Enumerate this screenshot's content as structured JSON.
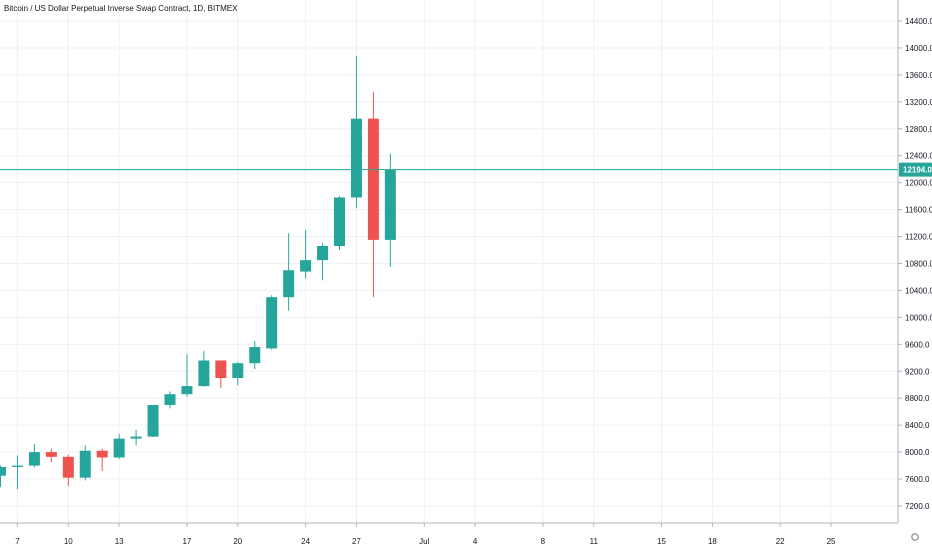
{
  "chart_data": {
    "type": "candlestick",
    "title": "Bitcoin / US Dollar Perpetual Inverse Swap Contract, 1D, BITMEX",
    "x_tick_labels": [
      "7",
      "10",
      "13",
      "17",
      "20",
      "24",
      "27",
      "Jul",
      "4",
      "8",
      "11",
      "15",
      "18",
      "22",
      "25"
    ],
    "y_tick_labels": [
      "14400.0",
      "14000.0",
      "13600.0",
      "13200.0",
      "12800.0",
      "12400.0",
      "12000.0",
      "11600.0",
      "11200.0",
      "10800.0",
      "10400.0",
      "10000.0",
      "9600.0",
      "9200.0",
      "8800.0",
      "8400.0",
      "8000.0",
      "7600.0",
      "7200.0"
    ],
    "ylim": [
      6950,
      14650
    ],
    "grid": true,
    "current_price": 12194.0,
    "current_price_label": "12194.0",
    "colors": {
      "up": "#26a69a",
      "down": "#ef5350",
      "price_line": "#26a69a",
      "grid": "#eef0f4",
      "axis_text": "#131722"
    },
    "candles": [
      {
        "date": "Jun 6",
        "open": 7650,
        "high": 7800,
        "low": 7480,
        "close": 7780
      },
      {
        "date": "Jun 7",
        "open": 7780,
        "high": 7950,
        "low": 7450,
        "close": 7800
      },
      {
        "date": "Jun 8",
        "open": 7800,
        "high": 8120,
        "low": 7770,
        "close": 8000
      },
      {
        "date": "Jun 9",
        "open": 8000,
        "high": 8050,
        "low": 7850,
        "close": 7930
      },
      {
        "date": "Jun 10",
        "open": 7930,
        "high": 7960,
        "low": 7500,
        "close": 7620
      },
      {
        "date": "Jun 11",
        "open": 7620,
        "high": 8100,
        "low": 7580,
        "close": 8020
      },
      {
        "date": "Jun 12",
        "open": 8020,
        "high": 8050,
        "low": 7720,
        "close": 7920
      },
      {
        "date": "Jun 13",
        "open": 7920,
        "high": 8270,
        "low": 7900,
        "close": 8200
      },
      {
        "date": "Jun 14",
        "open": 8200,
        "high": 8330,
        "low": 8100,
        "close": 8230
      },
      {
        "date": "Jun 15",
        "open": 8230,
        "high": 8700,
        "low": 8220,
        "close": 8700
      },
      {
        "date": "Jun 16",
        "open": 8700,
        "high": 8900,
        "low": 8650,
        "close": 8860
      },
      {
        "date": "Jun 17",
        "open": 8860,
        "high": 9450,
        "low": 8820,
        "close": 8980
      },
      {
        "date": "Jun 18",
        "open": 8980,
        "high": 9500,
        "low": 8970,
        "close": 9360
      },
      {
        "date": "Jun 19",
        "open": 9360,
        "high": 9360,
        "low": 8950,
        "close": 9100
      },
      {
        "date": "Jun 20",
        "open": 9100,
        "high": 9340,
        "low": 8990,
        "close": 9320
      },
      {
        "date": "Jun 21",
        "open": 9320,
        "high": 9650,
        "low": 9230,
        "close": 9560
      },
      {
        "date": "Jun 22",
        "open": 9540,
        "high": 10330,
        "low": 9520,
        "close": 10300
      },
      {
        "date": "Jun 23",
        "open": 10300,
        "high": 11250,
        "low": 10100,
        "close": 10700
      },
      {
        "date": "Jun 24",
        "open": 10680,
        "high": 11300,
        "low": 10580,
        "close": 10850
      },
      {
        "date": "Jun 25",
        "open": 10850,
        "high": 11100,
        "low": 10550,
        "close": 11060
      },
      {
        "date": "Jun 26",
        "open": 11060,
        "high": 11800,
        "low": 11000,
        "close": 11780
      },
      {
        "date": "Jun 27",
        "open": 11780,
        "high": 13880,
        "low": 11620,
        "close": 12950
      },
      {
        "date": "Jun 28",
        "open": 12950,
        "high": 13350,
        "low": 10300,
        "close": 11150
      },
      {
        "date": "Jun 29",
        "open": 11150,
        "high": 12430,
        "low": 10750,
        "close": 12194
      }
    ]
  }
}
